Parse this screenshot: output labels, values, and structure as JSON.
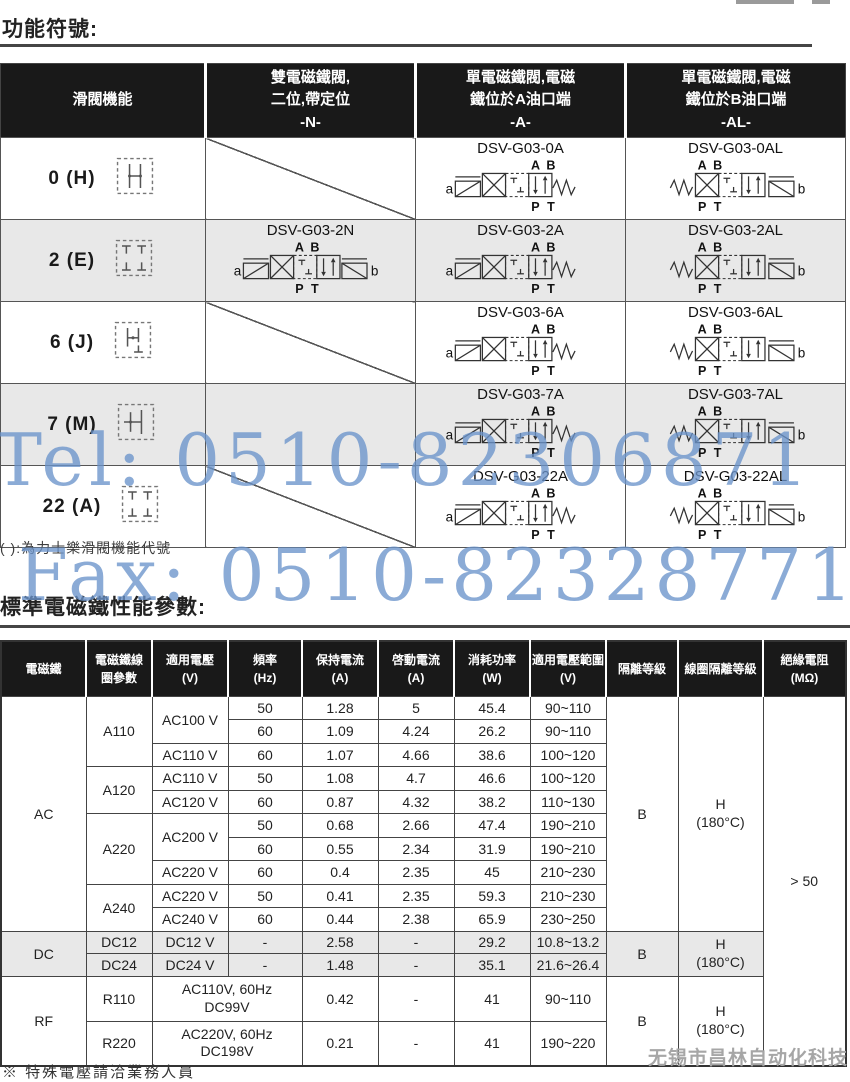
{
  "page": {
    "title1": "功能符號:",
    "title2": "標準電磁鐵性能參數:",
    "footnote1": "( ):為力士樂滑閥機能代號",
    "footnote2": "※ 特殊電壓請洽業務人員",
    "footer": "无锡市昌林自动化科技"
  },
  "watermark": {
    "tel": "Tel: 0510-82306871",
    "fax": "Fax: 0510-82328771",
    "color": "#6a94cb"
  },
  "colors": {
    "header_bg": "#191919",
    "shade_row": "#e8e8e8",
    "watermark_blue": "#6a94cb",
    "footer_gray": "#a6a6a6"
  },
  "table1": {
    "headers": [
      "滑閥機能",
      "雙電磁鐵閥,\n二位,帶定位\n-N-",
      "單電磁鐵閥,電磁\n鐵位於A油口端\n-A-",
      "單電磁鐵閥,電磁\n鐵位於B油口端\n-AL-"
    ],
    "ports": {
      "a": "a",
      "b": "b",
      "A": "A",
      "B": "B",
      "P": "P",
      "T": "T"
    },
    "rows": [
      {
        "code": "0 (H)",
        "n": "",
        "a": "DSV-G03-0A",
        "al": "DSV-G03-0AL"
      },
      {
        "code": "2 (E)",
        "n": "DSV-G03-2N",
        "a": "DSV-G03-2A",
        "al": "DSV-G03-2AL"
      },
      {
        "code": "6 (J)",
        "n": "",
        "a": "DSV-G03-6A",
        "al": "DSV-G03-6AL"
      },
      {
        "code": "7 (M)",
        "n": "",
        "a": "DSV-G03-7A",
        "al": "DSV-G03-7AL"
      },
      {
        "code": "22 (A)",
        "n": "",
        "a": "DSV-G03-22A",
        "al": "DSV-G03-22AL"
      }
    ]
  },
  "table2": {
    "headers": [
      "電磁鐵",
      "電磁鐵線\n圈參數",
      "適用電壓\n(V)",
      "頻率\n(Hz)",
      "保持電流\n(A)",
      "啓動電流\n(A)",
      "消耗功率\n(W)",
      "適用電壓範圍\n(V)",
      "隔離等級",
      "線圈隔離等級",
      "絕緣電阻\n(MΩ)"
    ],
    "rows": [
      [
        "AC",
        "A110",
        "AC100 V",
        "50",
        "1.28",
        "5",
        "45.4",
        "90~110",
        "B",
        "H\n(180°C)",
        "> 50"
      ],
      [
        "60",
        "1.09",
        "4.24",
        "26.2",
        "90~110"
      ],
      [
        "AC110 V",
        "60",
        "1.07",
        "4.66",
        "38.6",
        "100~120"
      ],
      [
        "A120",
        "AC110 V",
        "50",
        "1.08",
        "4.7",
        "46.6",
        "100~120"
      ],
      [
        "AC120 V",
        "60",
        "0.87",
        "4.32",
        "38.2",
        "110~130"
      ],
      [
        "A220",
        "AC200 V",
        "50",
        "0.68",
        "2.66",
        "47.4",
        "190~210"
      ],
      [
        "60",
        "0.55",
        "2.34",
        "31.9",
        "190~210"
      ],
      [
        "AC220 V",
        "60",
        "0.4",
        "2.35",
        "45",
        "210~230"
      ],
      [
        "A240",
        "AC220 V",
        "50",
        "0.41",
        "2.35",
        "59.3",
        "210~230"
      ],
      [
        "AC240 V",
        "60",
        "0.44",
        "2.38",
        "65.9",
        "230~250"
      ],
      [
        "DC",
        "DC12",
        "DC12 V",
        "-",
        "2.58",
        "-",
        "29.2",
        "10.8~13.2",
        "B",
        "H\n(180°C)"
      ],
      [
        "DC24",
        "DC24 V",
        "-",
        "1.48",
        "-",
        "35.1",
        "21.6~26.4"
      ],
      [
        "RF",
        "R110",
        "AC110V, 60Hz\nDC99V",
        "0.42",
        "-",
        "41",
        "90~110",
        "B",
        "H\n(180°C)"
      ],
      [
        "R220",
        "AC220V, 60Hz\nDC198V",
        "0.21",
        "-",
        "41",
        "190~220"
      ]
    ]
  }
}
